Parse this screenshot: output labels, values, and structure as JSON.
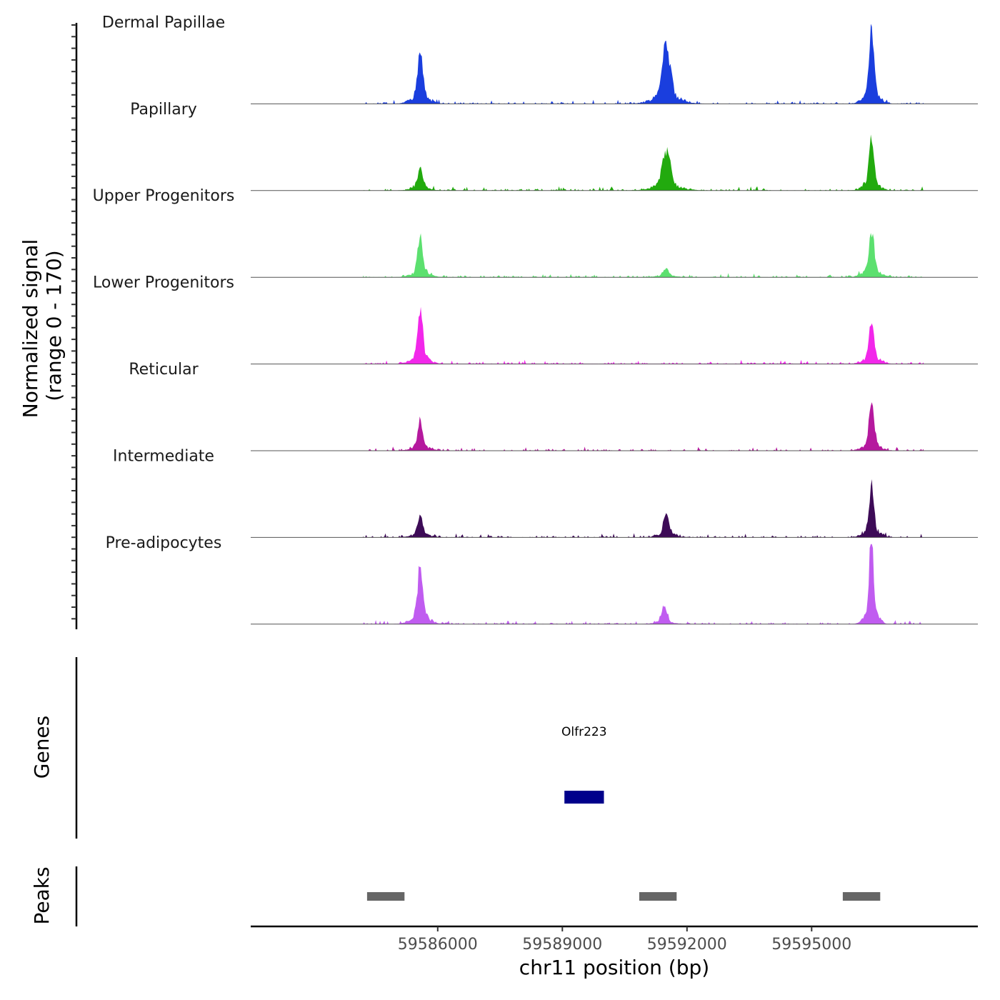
{
  "chart_data": {
    "type": "area",
    "chromosome": "chr11",
    "signal_axis_title": "Normalized signal",
    "signal_axis_range_text": "(range 0 - 170)",
    "signal_range": [
      0,
      170
    ],
    "xlim": [
      59581500,
      59599000
    ],
    "x_ticks": [
      59586000,
      59589000,
      59592000,
      59595000
    ],
    "x_tick_labels": [
      "59586000",
      "59589000",
      "59592000",
      "59595000"
    ],
    "xlabel": "chr11 position (bp)",
    "tracks": [
      {
        "name": "Dermal Papillae",
        "color": "#1a3ede",
        "peaks": [
          {
            "pos": 59585580,
            "height": 95,
            "width": 65
          },
          {
            "pos": 59591500,
            "height": 105,
            "width": 95
          },
          {
            "pos": 59596440,
            "height": 145,
            "width": 55
          }
        ],
        "extent": [
          59584200,
          59597700
        ]
      },
      {
        "name": "Papillary",
        "color": "#22aa0e",
        "peaks": [
          {
            "pos": 59585580,
            "height": 42,
            "width": 60
          },
          {
            "pos": 59591500,
            "height": 72,
            "width": 95
          },
          {
            "pos": 59596440,
            "height": 100,
            "width": 55
          }
        ],
        "extent": [
          59584200,
          59597700
        ]
      },
      {
        "name": "Upper Progenitors",
        "color": "#5ce06f",
        "peaks": [
          {
            "pos": 59585580,
            "height": 70,
            "width": 60
          },
          {
            "pos": 59591500,
            "height": 15,
            "width": 70
          },
          {
            "pos": 59596440,
            "height": 88,
            "width": 60
          }
        ],
        "extent": [
          59584200,
          59597700
        ]
      },
      {
        "name": "Lower Progenitors",
        "color": "#f227ea",
        "peaks": [
          {
            "pos": 59585580,
            "height": 98,
            "width": 60
          },
          {
            "pos": 59596440,
            "height": 72,
            "width": 60
          }
        ],
        "extent": [
          59584200,
          59597700
        ]
      },
      {
        "name": "Reticular",
        "color": "#b5199e",
        "peaks": [
          {
            "pos": 59585580,
            "height": 55,
            "width": 60
          },
          {
            "pos": 59596440,
            "height": 80,
            "width": 60
          }
        ],
        "extent": [
          59584200,
          59597700
        ]
      },
      {
        "name": "Intermediate",
        "color": "#3d0b57",
        "peaks": [
          {
            "pos": 59585580,
            "height": 40,
            "width": 60
          },
          {
            "pos": 59591500,
            "height": 48,
            "width": 60
          },
          {
            "pos": 59596440,
            "height": 95,
            "width": 55
          }
        ],
        "extent": [
          59584200,
          59597700
        ]
      },
      {
        "name": "Pre-adipocytes",
        "color": "#c05cf0",
        "peaks": [
          {
            "pos": 59585580,
            "height": 100,
            "width": 65
          },
          {
            "pos": 59591450,
            "height": 32,
            "width": 60
          },
          {
            "pos": 59596440,
            "height": 170,
            "width": 45
          }
        ],
        "extent": [
          59584200,
          59597700
        ]
      }
    ],
    "genes_title": "Genes",
    "genes": [
      {
        "name": "Olfr223",
        "start": 59589050,
        "end": 59590000,
        "color": "#00008b"
      }
    ],
    "peaks_title": "Peaks",
    "peak_regions": [
      {
        "start": 59584300,
        "end": 59585200
      },
      {
        "start": 59590850,
        "end": 59591750
      },
      {
        "start": 59595750,
        "end": 59596650
      }
    ],
    "peak_color": "#666666"
  }
}
